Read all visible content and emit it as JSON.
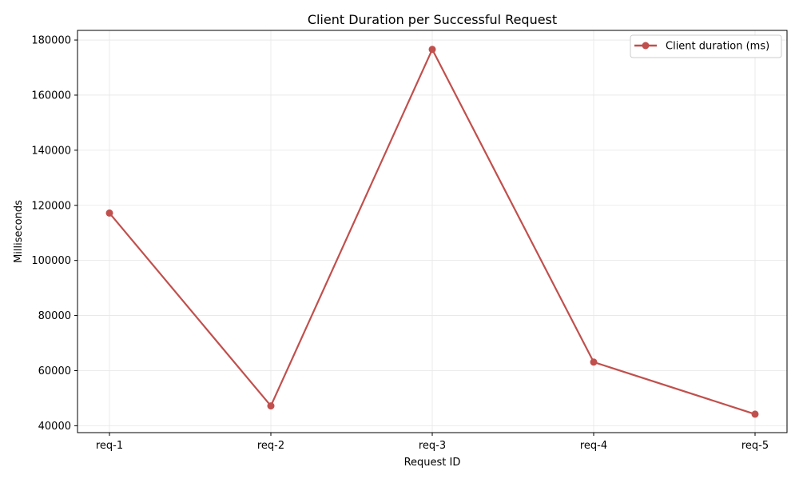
{
  "chart_data": {
    "type": "line",
    "title": "Client Duration per Successful Request",
    "xlabel": "Request ID",
    "ylabel": "Milliseconds",
    "categories": [
      "req-1",
      "req-2",
      "req-3",
      "req-4",
      "req-5"
    ],
    "series": [
      {
        "name": "Client duration (ms)",
        "color": "#c0504d",
        "marker": "circle",
        "values": [
          117200,
          47200,
          176600,
          63100,
          44200
        ]
      }
    ],
    "ylim": [
      37500,
      183500
    ],
    "yticks": [
      40000,
      60000,
      80000,
      100000,
      120000,
      140000,
      160000,
      180000
    ],
    "ytick_labels": [
      "40000",
      "60000",
      "80000",
      "100000",
      "120000",
      "140000",
      "160000",
      "180000"
    ],
    "grid": true,
    "legend_position": "top-right"
  }
}
